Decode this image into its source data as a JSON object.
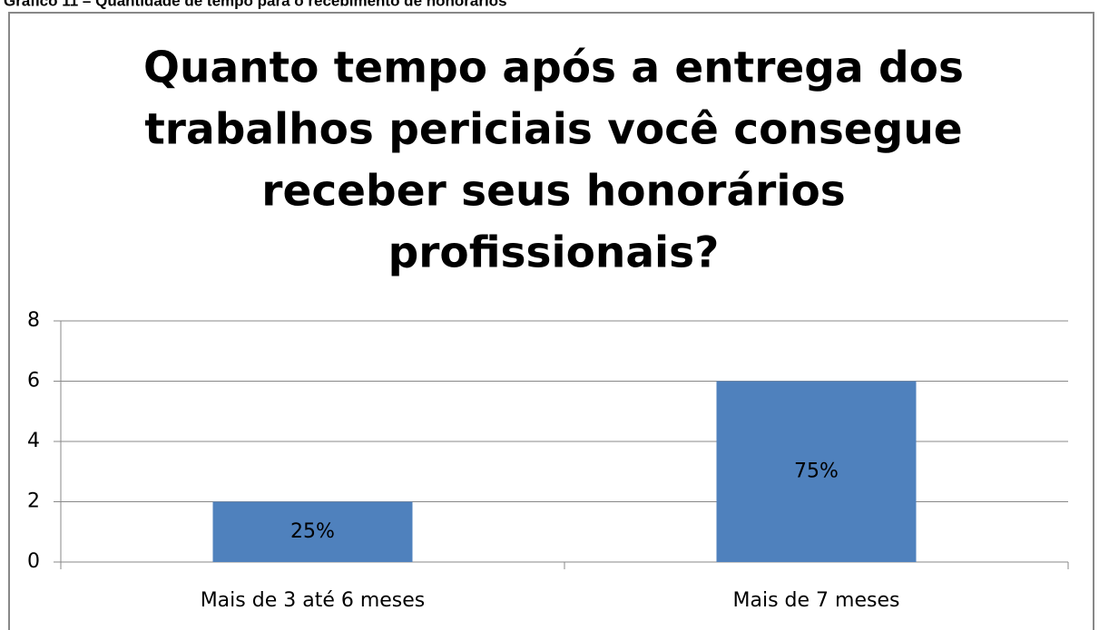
{
  "chart_data": {
    "type": "bar",
    "caption": "Gráfico 11 – Quantidade de tempo para o recebimento de honorários",
    "title": [
      "Quanto tempo após a entrega dos",
      "trabalhos periciais você consegue",
      "receber seus honorários",
      "profissionais?"
    ],
    "categories": [
      "Mais  de 3 até 6 meses",
      "Mais  de 7 meses"
    ],
    "values": [
      2,
      6
    ],
    "percent_labels": [
      "25%",
      "75%"
    ],
    "color": "#4f81bd",
    "ylim": [
      0,
      8
    ],
    "yticks": [
      0,
      2,
      4,
      6,
      8
    ],
    "grid": true
  }
}
